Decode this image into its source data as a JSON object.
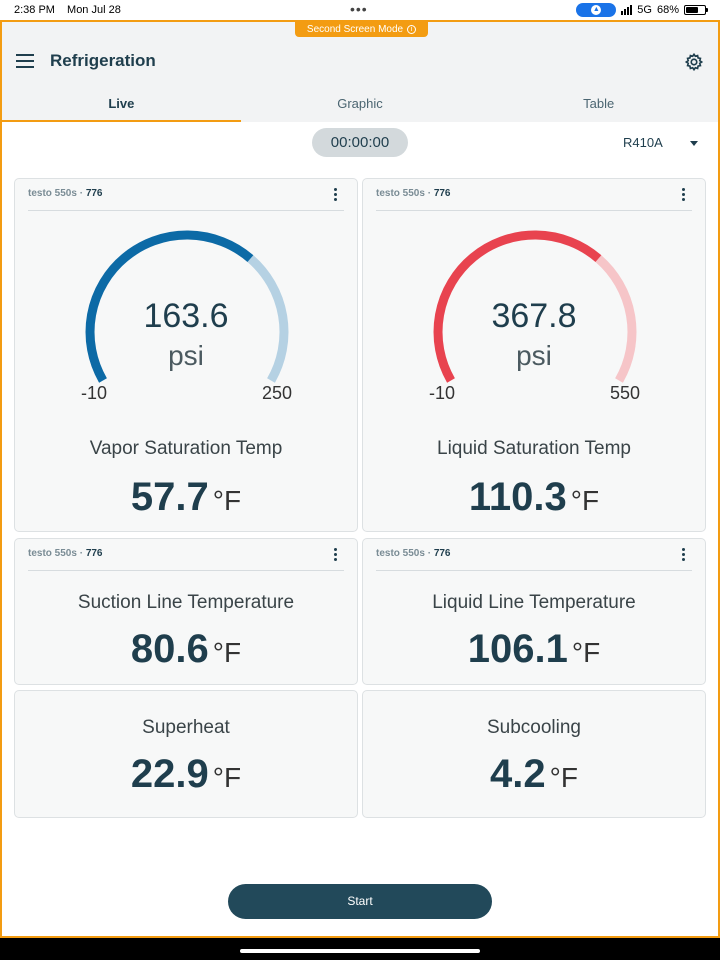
{
  "status_bar": {
    "time": "2:38 PM",
    "date": "Mon Jul 28",
    "network": "5G",
    "battery": "68%",
    "battery_level": 0.68
  },
  "banner": {
    "text": "Second Screen Mode",
    "info_glyph": "i"
  },
  "header": {
    "title": "Refrigeration"
  },
  "tabs": [
    {
      "label": "Live",
      "active": true
    },
    {
      "label": "Graphic",
      "active": false
    },
    {
      "label": "Table",
      "active": false
    }
  ],
  "timer": "00:00:00",
  "refrigerant": "R410A",
  "gauges": [
    {
      "device": "testo 550s",
      "sep": " · ",
      "device_id": "776",
      "value": "163.6",
      "unit": "psi",
      "min": "-10",
      "max": "250",
      "fill_fraction": 0.67,
      "color": "#0c6aa6",
      "track_color": "#b5d1e3",
      "label": "Vapor Saturation Temp",
      "temp": "57.7",
      "temp_unit": "°F"
    },
    {
      "device": "testo 550s",
      "sep": " · ",
      "device_id": "776",
      "value": "367.8",
      "unit": "psi",
      "min": "-10",
      "max": "550",
      "fill_fraction": 0.67,
      "color": "#e8434f",
      "track_color": "#f6c5c8",
      "label": "Liquid Saturation Temp",
      "temp": "110.3",
      "temp_unit": "°F"
    }
  ],
  "sensors": [
    {
      "device": "testo 550s",
      "sep": " · ",
      "device_id": "776",
      "label": "Suction Line Temperature",
      "value": "80.6",
      "unit": "°F"
    },
    {
      "device": "testo 550s",
      "sep": " · ",
      "device_id": "776",
      "label": "Liquid Line Temperature",
      "value": "106.1",
      "unit": "°F"
    }
  ],
  "calcs": [
    {
      "label": "Superheat",
      "value": "22.9",
      "unit": "°F"
    },
    {
      "label": "Subcooling",
      "value": "4.2",
      "unit": "°F"
    }
  ],
  "start_label": "Start",
  "icons": {
    "menu": "hamburger-menu-icon",
    "settings": "gear-icon",
    "more": "kebab-icon",
    "dropdown": "caret-down-icon",
    "info": "info-icon"
  }
}
